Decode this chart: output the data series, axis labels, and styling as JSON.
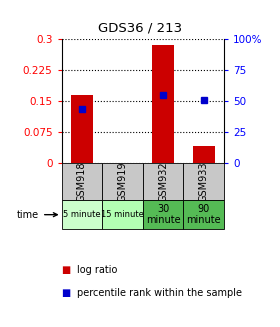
{
  "title": "GDS36 / 213",
  "samples": [
    "GSM918",
    "GSM919",
    "GSM932",
    "GSM933"
  ],
  "time_labels": [
    "5 minute",
    "15 minute",
    "30\nminute",
    "90\nminute"
  ],
  "time_colors": [
    "#ccffcc",
    "#b3ffb3",
    "#55bb55",
    "#55bb55"
  ],
  "log_ratios": [
    0.165,
    0.0,
    0.285,
    0.04
  ],
  "percentile_ranks": [
    0.13,
    0.0,
    0.165,
    0.153
  ],
  "ylim_left": [
    0,
    0.3
  ],
  "ylim_right": [
    0,
    100
  ],
  "yticks_left": [
    0,
    0.075,
    0.15,
    0.225,
    0.3
  ],
  "ytick_left_labels": [
    "0",
    "0.075",
    "0.15",
    "0.225",
    "0.3"
  ],
  "yticks_right": [
    0,
    25,
    50,
    75,
    100
  ],
  "ytick_right_labels": [
    "0",
    "25",
    "50",
    "75",
    "100%"
  ],
  "bar_color": "#cc0000",
  "point_color": "#0000cc",
  "bar_width": 0.55,
  "background_color": "#ffffff",
  "sample_bg_color": "#c8c8c8",
  "legend_label_ratio": "log ratio",
  "legend_label_pct": "percentile rank within the sample",
  "pct_scale": 0.003
}
